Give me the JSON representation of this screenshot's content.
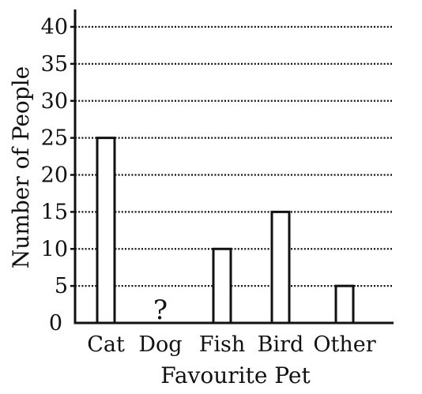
{
  "chart_data": {
    "type": "bar",
    "title": "",
    "xlabel": "Favourite Pet",
    "ylabel": "Number of People",
    "categories": [
      "Cat",
      "Dog",
      "Fish",
      "Bird",
      "Other"
    ],
    "values": [
      25,
      null,
      10,
      15,
      5
    ],
    "ylim": [
      0,
      40
    ],
    "yticks": [
      0,
      5,
      10,
      15,
      20,
      25,
      30,
      35,
      40
    ],
    "grid": true,
    "grid_style": "dotted",
    "annotations": [
      {
        "category": "Dog",
        "text": "?"
      }
    ],
    "colors": {
      "bar_fill": "#ffffff",
      "bar_stroke": "#111111",
      "axis": "#111111",
      "grid": "#111111"
    }
  }
}
